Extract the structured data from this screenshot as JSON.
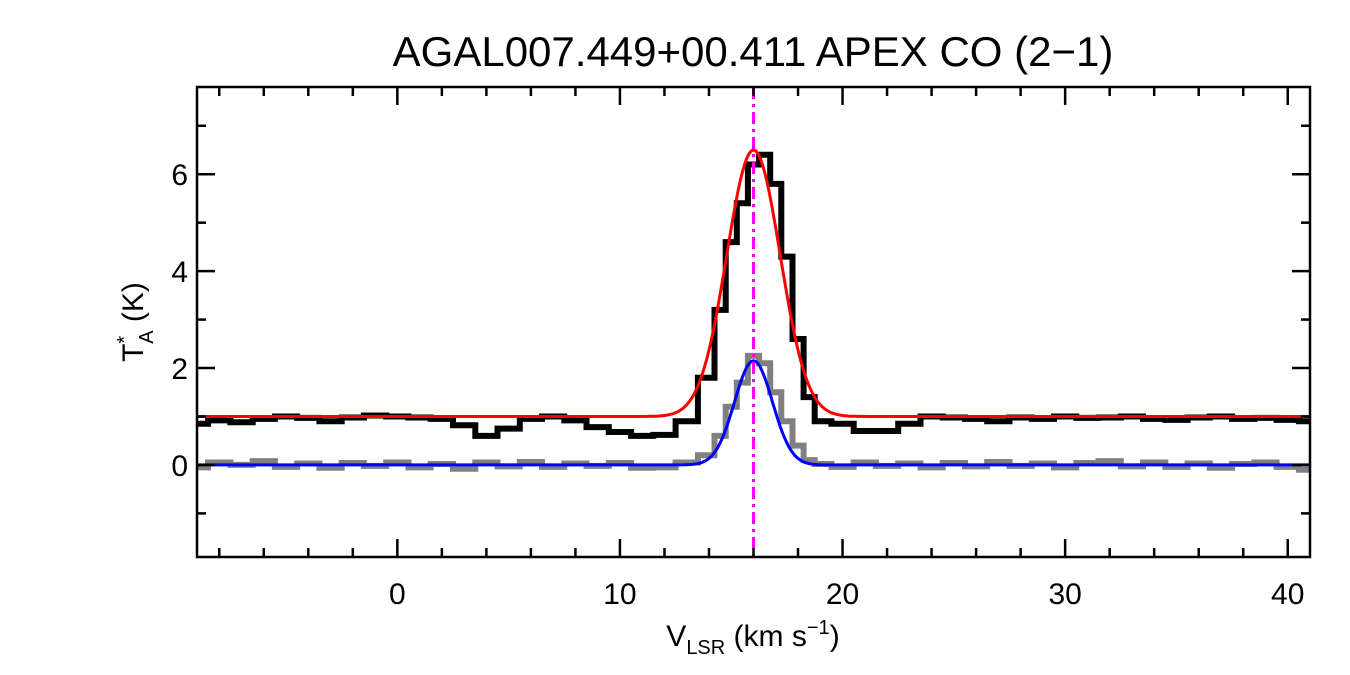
{
  "chart_data": {
    "type": "line",
    "title": "AGAL007.449+00.411  APEX CO (2−1)",
    "xlabel": {
      "main": "V",
      "sub": "LSR",
      "unit": " (km s",
      "exp": "−1",
      "close": ")"
    },
    "ylabel": {
      "main": "T",
      "sup": "*",
      "sub": "A",
      "unit": " (K)"
    },
    "xlim": [
      -9,
      41
    ],
    "ylim": [
      -1.9,
      7.8
    ],
    "x_ticks": [
      0,
      10,
      20,
      30,
      40
    ],
    "x_tick_labels": [
      "0",
      "10",
      "20",
      "30",
      "40"
    ],
    "y_ticks": [
      0,
      2,
      4,
      6
    ],
    "y_tick_labels": [
      "0",
      "2",
      "4",
      "6"
    ],
    "x_minor_step": 2,
    "y_minor_step": 1,
    "grid": false,
    "series": [
      {
        "style": "histogram",
        "color": "#000000",
        "points": [
          [
            -9,
            0.85
          ],
          [
            -8,
            0.92
          ],
          [
            -7,
            0.88
          ],
          [
            -6,
            0.95
          ],
          [
            -5,
            1.0
          ],
          [
            -4,
            0.97
          ],
          [
            -3,
            0.9
          ],
          [
            -2,
            0.98
          ],
          [
            -1,
            1.02
          ],
          [
            0,
            1.0
          ],
          [
            1,
            0.98
          ],
          [
            2,
            0.95
          ],
          [
            3,
            0.82
          ],
          [
            4,
            0.6
          ],
          [
            5,
            0.75
          ],
          [
            6,
            0.95
          ],
          [
            7,
            1.0
          ],
          [
            8,
            0.92
          ],
          [
            9,
            0.78
          ],
          [
            10,
            0.68
          ],
          [
            11,
            0.6
          ],
          [
            12,
            0.62
          ],
          [
            13,
            0.9
          ],
          [
            14,
            1.8
          ],
          [
            14.5,
            3.2
          ],
          [
            15,
            4.6
          ],
          [
            15.5,
            5.4
          ],
          [
            16,
            6.2
          ],
          [
            16.5,
            6.4
          ],
          [
            17,
            5.8
          ],
          [
            17.5,
            4.3
          ],
          [
            18,
            2.6
          ],
          [
            18.5,
            1.4
          ],
          [
            19,
            0.9
          ],
          [
            20,
            0.85
          ],
          [
            21,
            0.7
          ],
          [
            22,
            0.7
          ],
          [
            23,
            0.85
          ],
          [
            24,
            1.0
          ],
          [
            25,
            0.98
          ],
          [
            26,
            0.95
          ],
          [
            27,
            0.9
          ],
          [
            28,
            0.98
          ],
          [
            29,
            0.95
          ],
          [
            30,
            1.0
          ],
          [
            31,
            0.97
          ],
          [
            32,
            0.98
          ],
          [
            33,
            1.0
          ],
          [
            34,
            0.95
          ],
          [
            35,
            0.93
          ],
          [
            36,
            0.98
          ],
          [
            37,
            1.0
          ],
          [
            38,
            0.95
          ],
          [
            39,
            0.97
          ],
          [
            40,
            0.93
          ],
          [
            41,
            0.9
          ]
        ]
      },
      {
        "style": "histogram",
        "color": "#808080",
        "points": [
          [
            -9,
            -0.05
          ],
          [
            -8,
            0.05
          ],
          [
            -7,
            0.0
          ],
          [
            -6,
            0.08
          ],
          [
            -5,
            -0.04
          ],
          [
            -4,
            0.03
          ],
          [
            -3,
            -0.06
          ],
          [
            -2,
            0.04
          ],
          [
            -1,
            -0.02
          ],
          [
            0,
            0.05
          ],
          [
            1,
            -0.05
          ],
          [
            2,
            0.02
          ],
          [
            3,
            -0.08
          ],
          [
            4,
            0.05
          ],
          [
            5,
            -0.03
          ],
          [
            6,
            0.06
          ],
          [
            7,
            -0.04
          ],
          [
            8,
            0.03
          ],
          [
            9,
            -0.02
          ],
          [
            10,
            0.04
          ],
          [
            11,
            -0.06
          ],
          [
            12,
            -0.05
          ],
          [
            13,
            0.05
          ],
          [
            14,
            0.2
          ],
          [
            14.5,
            0.6
          ],
          [
            15,
            1.2
          ],
          [
            15.5,
            1.7
          ],
          [
            16,
            2.25
          ],
          [
            16.5,
            2.1
          ],
          [
            17,
            1.5
          ],
          [
            17.5,
            0.9
          ],
          [
            18,
            0.4
          ],
          [
            18.5,
            0.1
          ],
          [
            19,
            0.02
          ],
          [
            20,
            -0.04
          ],
          [
            21,
            0.05
          ],
          [
            22,
            -0.02
          ],
          [
            23,
            0.03
          ],
          [
            24,
            -0.05
          ],
          [
            25,
            0.04
          ],
          [
            26,
            -0.03
          ],
          [
            27,
            0.06
          ],
          [
            28,
            -0.02
          ],
          [
            29,
            0.03
          ],
          [
            30,
            -0.05
          ],
          [
            31,
            0.04
          ],
          [
            32,
            0.08
          ],
          [
            33,
            -0.03
          ],
          [
            34,
            0.05
          ],
          [
            35,
            -0.04
          ],
          [
            36,
            0.03
          ],
          [
            37,
            -0.06
          ],
          [
            38,
            0.02
          ],
          [
            39,
            0.05
          ],
          [
            40,
            -0.04
          ],
          [
            41,
            -0.1
          ]
        ]
      },
      {
        "style": "gaussian",
        "color": "#ff0000",
        "baseline": 1.0,
        "amplitude": 5.5,
        "center": 16.0,
        "sigma": 1.2
      },
      {
        "style": "gaussian",
        "color": "#0000ff",
        "baseline": 0.0,
        "amplitude": 2.15,
        "center": 16.0,
        "sigma": 0.85
      }
    ],
    "annotations": [
      {
        "type": "vline",
        "x": 16.0,
        "color": "#ff00ff",
        "style": "dash-dot"
      }
    ]
  }
}
